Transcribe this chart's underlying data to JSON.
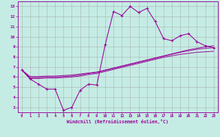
{
  "xlabel": "Windchill (Refroidissement éolien,°C)",
  "bg_color": "#c5ece4",
  "line_color": "#990099",
  "grid_color": "#999999",
  "x": [
    0,
    1,
    2,
    3,
    4,
    5,
    6,
    7,
    8,
    9,
    10,
    11,
    12,
    13,
    14,
    15,
    16,
    17,
    18,
    19,
    20,
    21,
    22,
    23
  ],
  "y_main": [
    6.7,
    5.8,
    5.3,
    4.8,
    4.8,
    2.7,
    3.0,
    4.7,
    5.3,
    5.2,
    9.2,
    12.5,
    12.1,
    13.0,
    12.4,
    12.8,
    11.5,
    9.8,
    9.6,
    10.1,
    10.3,
    9.5,
    9.1,
    8.9
  ],
  "y_reg1": [
    6.7,
    6.05,
    6.05,
    6.1,
    6.1,
    6.15,
    6.2,
    6.3,
    6.4,
    6.5,
    6.7,
    6.9,
    7.1,
    7.3,
    7.5,
    7.7,
    7.9,
    8.1,
    8.3,
    8.5,
    8.7,
    8.85,
    9.0,
    9.1
  ],
  "y_reg2": [
    6.7,
    5.95,
    5.95,
    6.0,
    6.0,
    6.05,
    6.1,
    6.2,
    6.35,
    6.45,
    6.65,
    6.85,
    7.05,
    7.25,
    7.45,
    7.65,
    7.85,
    8.05,
    8.25,
    8.45,
    8.6,
    8.75,
    8.85,
    8.9
  ],
  "y_reg3": [
    6.7,
    5.85,
    5.85,
    5.9,
    5.9,
    5.95,
    6.0,
    6.1,
    6.25,
    6.35,
    6.55,
    6.75,
    6.95,
    7.15,
    7.35,
    7.55,
    7.75,
    7.95,
    8.1,
    8.25,
    8.35,
    8.45,
    8.5,
    8.55
  ],
  "xlim": [
    -0.5,
    23.5
  ],
  "ylim": [
    2.5,
    13.5
  ],
  "yticks": [
    3,
    4,
    5,
    6,
    7,
    8,
    9,
    10,
    11,
    12,
    13
  ],
  "xticks": [
    0,
    1,
    2,
    3,
    4,
    5,
    6,
    7,
    8,
    9,
    10,
    11,
    12,
    13,
    14,
    15,
    16,
    17,
    18,
    19,
    20,
    21,
    22,
    23
  ]
}
